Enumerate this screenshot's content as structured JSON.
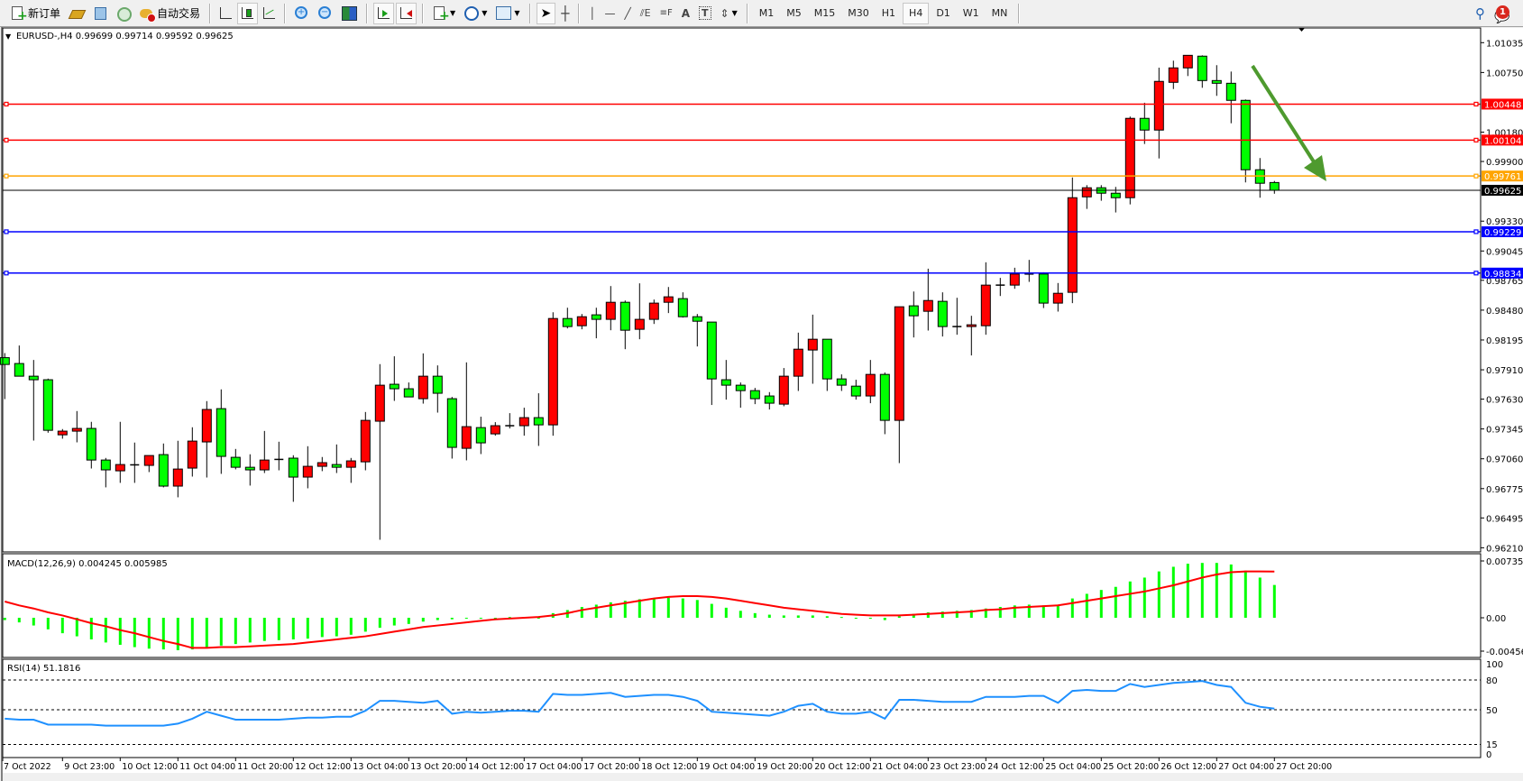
{
  "toolbar": {
    "new_order": "新订单",
    "auto_trading": "自动交易",
    "timeframes": [
      "M1",
      "M5",
      "M15",
      "M30",
      "H1",
      "H4",
      "D1",
      "W1",
      "MN"
    ],
    "selected_timeframe": "H4",
    "notification_count": "1"
  },
  "chart": {
    "header": "EURUSD-,H4  0.99699 0.99714 0.99592 0.99625",
    "symbol": "EURUSD-",
    "timeframe": "H4",
    "bull_color": "#ff0000",
    "bear_color": "#00ff00",
    "price_ticks": [
      "1.01035",
      "1.00750",
      "1.00180",
      "0.99900",
      "0.99330",
      "0.99045",
      "0.98765",
      "0.98480",
      "0.98195",
      "0.97910",
      "0.97630",
      "0.97345",
      "0.97060",
      "0.96775",
      "0.96495",
      "0.96210"
    ],
    "time_labels": [
      "7 Oct 2022",
      "9 Oct 23:00",
      "10 Oct 12:00",
      "11 Oct 04:00",
      "11 Oct 20:00",
      "12 Oct 12:00",
      "13 Oct 04:00",
      "13 Oct 20:00",
      "14 Oct 12:00",
      "17 Oct 04:00",
      "17 Oct 20:00",
      "18 Oct 12:00",
      "19 Oct 04:00",
      "19 Oct 20:00",
      "20 Oct 12:00",
      "21 Oct 04:00",
      "23 Oct 23:00",
      "24 Oct 12:00",
      "25 Oct 04:00",
      "25 Oct 20:00",
      "26 Oct 12:00",
      "27 Oct 04:00",
      "27 Oct 20:00"
    ],
    "levels": [
      {
        "price": "1.00448",
        "color": "#ff0000"
      },
      {
        "price": "1.00104",
        "color": "#ff0000"
      },
      {
        "price": "0.99761",
        "color": "#ffa500"
      },
      {
        "price": "0.99229",
        "color": "#0000ff"
      },
      {
        "price": "0.98834",
        "color": "#0000ff"
      }
    ],
    "bid": {
      "price": "0.99625",
      "color": "#000000"
    },
    "arrow_color": "#4e9a2e",
    "arrow_direction": "down"
  },
  "chart_data": {
    "type": "candlestick",
    "ylim": [
      0.9621,
      1.01035
    ],
    "candles": [
      {
        "o": 0.98026,
        "h": 0.9807,
        "l": 0.9763,
        "c": 0.97961
      },
      {
        "o": 0.9797,
        "h": 0.98142,
        "l": 0.97849,
        "c": 0.97849
      },
      {
        "o": 0.97849,
        "h": 0.98004,
        "l": 0.97234,
        "c": 0.97815
      },
      {
        "o": 0.97815,
        "h": 0.97826,
        "l": 0.97309,
        "c": 0.97332
      },
      {
        "o": 0.97289,
        "h": 0.97344,
        "l": 0.97252,
        "c": 0.97324
      },
      {
        "o": 0.97324,
        "h": 0.97516,
        "l": 0.97217,
        "c": 0.9735
      },
      {
        "o": 0.9735,
        "h": 0.97413,
        "l": 0.96967,
        "c": 0.97048
      },
      {
        "o": 0.97048,
        "h": 0.97068,
        "l": 0.96787,
        "c": 0.96954
      },
      {
        "o": 0.96945,
        "h": 0.97413,
        "l": 0.9683,
        "c": 0.97005
      },
      {
        "o": 0.97002,
        "h": 0.97215,
        "l": 0.9683,
        "c": 0.97002
      },
      {
        "o": 0.96997,
        "h": 0.97091,
        "l": 0.96933,
        "c": 0.97091
      },
      {
        "o": 0.971,
        "h": 0.97206,
        "l": 0.96787,
        "c": 0.96799
      },
      {
        "o": 0.96799,
        "h": 0.97232,
        "l": 0.96692,
        "c": 0.96962
      },
      {
        "o": 0.96971,
        "h": 0.97361,
        "l": 0.9689,
        "c": 0.97229
      },
      {
        "o": 0.97221,
        "h": 0.97611,
        "l": 0.96881,
        "c": 0.97531
      },
      {
        "o": 0.97539,
        "h": 0.97723,
        "l": 0.96916,
        "c": 0.97083
      },
      {
        "o": 0.97074,
        "h": 0.97154,
        "l": 0.96959,
        "c": 0.96979
      },
      {
        "o": 0.96979,
        "h": 0.97103,
        "l": 0.96804,
        "c": 0.96954
      },
      {
        "o": 0.96954,
        "h": 0.97326,
        "l": 0.96924,
        "c": 0.97048
      },
      {
        "o": 0.97054,
        "h": 0.97223,
        "l": 0.9695,
        "c": 0.97054
      },
      {
        "o": 0.97066,
        "h": 0.97094,
        "l": 0.96649,
        "c": 0.96885
      },
      {
        "o": 0.96885,
        "h": 0.9718,
        "l": 0.96778,
        "c": 0.96988
      },
      {
        "o": 0.96988,
        "h": 0.97077,
        "l": 0.96942,
        "c": 0.97023
      },
      {
        "o": 0.97005,
        "h": 0.97197,
        "l": 0.96924,
        "c": 0.96979
      },
      {
        "o": 0.96979,
        "h": 0.97068,
        "l": 0.9683,
        "c": 0.9704
      },
      {
        "o": 0.97031,
        "h": 0.97507,
        "l": 0.9695,
        "c": 0.97427
      },
      {
        "o": 0.97419,
        "h": 0.97964,
        "l": 0.96287,
        "c": 0.97763
      },
      {
        "o": 0.97772,
        "h": 0.98039,
        "l": 0.97613,
        "c": 0.97729
      },
      {
        "o": 0.97729,
        "h": 0.97789,
        "l": 0.97651,
        "c": 0.97651
      },
      {
        "o": 0.97634,
        "h": 0.98067,
        "l": 0.97587,
        "c": 0.97849
      },
      {
        "o": 0.97849,
        "h": 0.97952,
        "l": 0.97501,
        "c": 0.97686
      },
      {
        "o": 0.97634,
        "h": 0.97651,
        "l": 0.97062,
        "c": 0.97169
      },
      {
        "o": 0.9716,
        "h": 0.97981,
        "l": 0.97045,
        "c": 0.97367
      },
      {
        "o": 0.97358,
        "h": 0.97462,
        "l": 0.97105,
        "c": 0.97212
      },
      {
        "o": 0.97298,
        "h": 0.9741,
        "l": 0.97281,
        "c": 0.97376
      },
      {
        "o": 0.97376,
        "h": 0.97496,
        "l": 0.9735,
        "c": 0.97376
      },
      {
        "o": 0.97376,
        "h": 0.97548,
        "l": 0.97281,
        "c": 0.97453
      },
      {
        "o": 0.97453,
        "h": 0.97686,
        "l": 0.97183,
        "c": 0.97384
      },
      {
        "o": 0.97384,
        "h": 0.9846,
        "l": 0.97281,
        "c": 0.984
      },
      {
        "o": 0.984,
        "h": 0.98503,
        "l": 0.98305,
        "c": 0.98323
      },
      {
        "o": 0.98331,
        "h": 0.98443,
        "l": 0.98297,
        "c": 0.98417
      },
      {
        "o": 0.98435,
        "h": 0.98503,
        "l": 0.98211,
        "c": 0.98392
      },
      {
        "o": 0.98392,
        "h": 0.9871,
        "l": 0.98288,
        "c": 0.98555
      },
      {
        "o": 0.98555,
        "h": 0.98572,
        "l": 0.98107,
        "c": 0.98288
      },
      {
        "o": 0.98297,
        "h": 0.98736,
        "l": 0.98202,
        "c": 0.98392
      },
      {
        "o": 0.98392,
        "h": 0.98581,
        "l": 0.98348,
        "c": 0.98547
      },
      {
        "o": 0.98555,
        "h": 0.98701,
        "l": 0.98452,
        "c": 0.98607
      },
      {
        "o": 0.9859,
        "h": 0.9865,
        "l": 0.98409,
        "c": 0.98417
      },
      {
        "o": 0.98417,
        "h": 0.98443,
        "l": 0.98133,
        "c": 0.98374
      },
      {
        "o": 0.98366,
        "h": 0.98366,
        "l": 0.97574,
        "c": 0.97823
      },
      {
        "o": 0.97815,
        "h": 0.98004,
        "l": 0.97625,
        "c": 0.97763
      },
      {
        "o": 0.97763,
        "h": 0.97789,
        "l": 0.97548,
        "c": 0.97711
      },
      {
        "o": 0.97711,
        "h": 0.97737,
        "l": 0.97582,
        "c": 0.97634
      },
      {
        "o": 0.9766,
        "h": 0.97697,
        "l": 0.97531,
        "c": 0.97591
      },
      {
        "o": 0.97582,
        "h": 0.97927,
        "l": 0.97562,
        "c": 0.97849
      },
      {
        "o": 0.97849,
        "h": 0.98265,
        "l": 0.97708,
        "c": 0.98107
      },
      {
        "o": 0.98099,
        "h": 0.98437,
        "l": 0.97777,
        "c": 0.98202
      },
      {
        "o": 0.98202,
        "h": 0.98202,
        "l": 0.97708,
        "c": 0.97823
      },
      {
        "o": 0.97823,
        "h": 0.97866,
        "l": 0.97708,
        "c": 0.97763
      },
      {
        "o": 0.97754,
        "h": 0.97815,
        "l": 0.97625,
        "c": 0.9766
      },
      {
        "o": 0.9766,
        "h": 0.98004,
        "l": 0.97591,
        "c": 0.97866
      },
      {
        "o": 0.97866,
        "h": 0.97884,
        "l": 0.97295,
        "c": 0.97427
      },
      {
        "o": 0.97427,
        "h": 0.98512,
        "l": 0.97019,
        "c": 0.98512
      },
      {
        "o": 0.98521,
        "h": 0.98658,
        "l": 0.98219,
        "c": 0.98426
      },
      {
        "o": 0.98469,
        "h": 0.98876,
        "l": 0.98285,
        "c": 0.98572
      },
      {
        "o": 0.98564,
        "h": 0.9865,
        "l": 0.98228,
        "c": 0.98323
      },
      {
        "o": 0.98323,
        "h": 0.98598,
        "l": 0.98245,
        "c": 0.98323
      },
      {
        "o": 0.98323,
        "h": 0.98426,
        "l": 0.98047,
        "c": 0.9834
      },
      {
        "o": 0.98331,
        "h": 0.98937,
        "l": 0.98245,
        "c": 0.98719
      },
      {
        "o": 0.98719,
        "h": 0.98788,
        "l": 0.98615,
        "c": 0.98719
      },
      {
        "o": 0.98719,
        "h": 0.98885,
        "l": 0.98684,
        "c": 0.98825
      },
      {
        "o": 0.98825,
        "h": 0.9896,
        "l": 0.9875,
        "c": 0.98825
      },
      {
        "o": 0.98825,
        "h": 0.98842,
        "l": 0.985,
        "c": 0.98547
      },
      {
        "o": 0.98547,
        "h": 0.98739,
        "l": 0.98466,
        "c": 0.98641
      },
      {
        "o": 0.9865,
        "h": 0.99748,
        "l": 0.98547,
        "c": 0.99554
      },
      {
        "o": 0.99562,
        "h": 0.99674,
        "l": 0.99447,
        "c": 0.99649
      },
      {
        "o": 0.99649,
        "h": 0.99674,
        "l": 0.99525,
        "c": 0.99597
      },
      {
        "o": 0.99597,
        "h": 0.99657,
        "l": 0.99413,
        "c": 0.99554
      },
      {
        "o": 0.99554,
        "h": 1.00329,
        "l": 0.9949,
        "c": 1.00312
      },
      {
        "o": 1.00312,
        "h": 1.00461,
        "l": 1.00067,
        "c": 1.002
      },
      {
        "o": 1.002,
        "h": 1.00796,
        "l": 0.99929,
        "c": 1.00665
      },
      {
        "o": 1.00656,
        "h": 1.00863,
        "l": 1.00592,
        "c": 1.00794
      },
      {
        "o": 1.00794,
        "h": 1.00914,
        "l": 1.00716,
        "c": 1.00914
      },
      {
        "o": 1.00906,
        "h": 1.00914,
        "l": 1.00604,
        "c": 1.00673
      },
      {
        "o": 1.00673,
        "h": 1.0082,
        "l": 1.00527,
        "c": 1.00647
      },
      {
        "o": 1.00647,
        "h": 1.00759,
        "l": 1.00265,
        "c": 1.00484
      },
      {
        "o": 1.00484,
        "h": 1.00492,
        "l": 0.997,
        "c": 0.99821
      },
      {
        "o": 0.99821,
        "h": 0.99933,
        "l": 0.99554,
        "c": 0.99692
      },
      {
        "o": 0.99699,
        "h": 0.99714,
        "l": 0.99592,
        "c": 0.99625
      }
    ],
    "macd": {
      "label": "MACD(12,26,9) 0.004245 0.005985",
      "ticks": [
        "0.007355",
        "0.00",
        "-0.004569"
      ],
      "ylim": [
        -0.004569,
        0.007355
      ],
      "histogram_color": "#00ff00",
      "signal_color": "#ff0000",
      "histogram": [
        -0.0003,
        -0.0006,
        -0.001,
        -0.0015,
        -0.002,
        -0.0024,
        -0.0028,
        -0.0032,
        -0.0035,
        -0.0038,
        -0.004,
        -0.0041,
        -0.0042,
        -0.0041,
        -0.0038,
        -0.0036,
        -0.0034,
        -0.0032,
        -0.003,
        -0.0029,
        -0.0028,
        -0.0027,
        -0.0025,
        -0.0024,
        -0.0022,
        -0.0018,
        -0.0013,
        -0.001,
        -0.0008,
        -0.0005,
        -0.0003,
        -0.0002,
        -0.0001,
        -0.0001,
        0.0,
        0.0001,
        0.0001,
        0.0,
        0.0006,
        0.001,
        0.0014,
        0.0017,
        0.002,
        0.0022,
        0.0024,
        0.0025,
        0.0026,
        0.0025,
        0.0023,
        0.0018,
        0.0013,
        0.0009,
        0.0006,
        0.0004,
        0.0003,
        0.0003,
        0.0003,
        0.0002,
        0.0001,
        0.0,
        -0.0001,
        -0.0003,
        0.0002,
        0.0005,
        0.0007,
        0.0008,
        0.0009,
        0.001,
        0.0012,
        0.0014,
        0.0016,
        0.0017,
        0.0016,
        0.0017,
        0.0025,
        0.0031,
        0.0036,
        0.004,
        0.0047,
        0.0052,
        0.006,
        0.0066,
        0.007,
        0.0071,
        0.0071,
        0.0069,
        0.0061,
        0.0052,
        0.004245
      ],
      "signal": [
        0.0021,
        0.0016,
        0.0012,
        0.0007,
        0.0003,
        -0.0002,
        -0.0007,
        -0.0011,
        -0.0016,
        -0.002,
        -0.0025,
        -0.003,
        -0.0034,
        -0.0039,
        -0.0039,
        -0.0038,
        -0.0038,
        -0.0037,
        -0.0036,
        -0.0035,
        -0.0034,
        -0.0032,
        -0.003,
        -0.0028,
        -0.0026,
        -0.0024,
        -0.0021,
        -0.0018,
        -0.0015,
        -0.0012,
        -0.001,
        -0.0008,
        -0.0006,
        -0.0004,
        -0.0002,
        -0.0001,
        0.0,
        0.0001,
        0.0003,
        0.0006,
        0.001,
        0.0013,
        0.0016,
        0.0019,
        0.0022,
        0.0025,
        0.0027,
        0.0028,
        0.0028,
        0.0027,
        0.0025,
        0.0022,
        0.0019,
        0.0016,
        0.0013,
        0.0011,
        0.0009,
        0.0007,
        0.0005,
        0.0004,
        0.0003,
        0.0003,
        0.0003,
        0.0004,
        0.0005,
        0.0006,
        0.0007,
        0.0008,
        0.001,
        0.0011,
        0.0013,
        0.0014,
        0.0015,
        0.0016,
        0.0019,
        0.0022,
        0.0025,
        0.0028,
        0.0031,
        0.0034,
        0.0038,
        0.0042,
        0.0047,
        0.0052,
        0.0056,
        0.0059,
        0.006,
        0.006,
        0.005985
      ]
    },
    "rsi": {
      "label": "RSI(14) 51.1816",
      "ticks": [
        "100",
        "80",
        "50",
        "15",
        "0"
      ],
      "levels": [
        80,
        50,
        15
      ],
      "ylim": [
        0,
        100
      ],
      "color": "#1e90ff",
      "values": [
        41,
        40,
        40,
        35,
        35,
        35,
        35,
        34,
        34,
        34,
        34,
        34,
        36,
        41,
        48,
        44,
        40,
        40,
        40,
        40,
        41,
        42,
        42,
        43,
        43,
        49,
        59,
        59,
        58,
        57,
        59,
        46,
        48,
        47,
        48,
        49,
        49,
        48,
        66,
        65,
        65,
        66,
        67,
        63,
        64,
        65,
        65,
        63,
        59,
        48,
        47,
        46,
        45,
        44,
        48,
        54,
        56,
        48,
        46,
        46,
        48,
        41,
        60,
        60,
        59,
        58,
        58,
        58,
        63,
        63,
        63,
        64,
        64,
        57,
        69,
        70,
        69,
        69,
        76,
        73,
        75,
        77,
        78,
        79,
        75,
        73,
        57,
        53,
        51.1816
      ]
    }
  }
}
